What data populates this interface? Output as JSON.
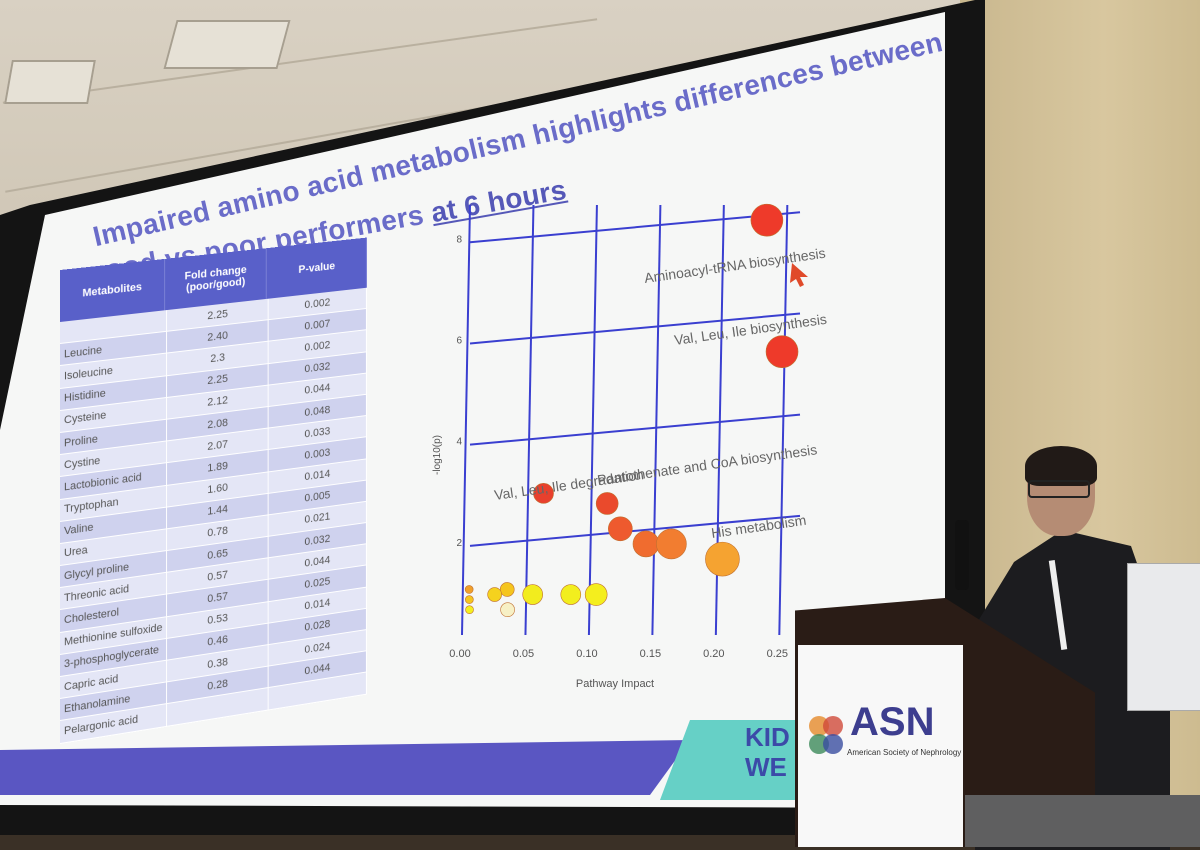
{
  "slide": {
    "title_line1": "Impaired amino acid metabolism highlights differences between",
    "title_line2_prefix": "good vs poor performers ",
    "title_line2_underlined": "at 6 hours"
  },
  "table": {
    "headers": [
      "Metabolites",
      "Fold change (poor/good)",
      "P-value"
    ],
    "rows": [
      [
        "",
        "2.25",
        "0.002"
      ],
      [
        "Leucine",
        "2.40",
        "0.007"
      ],
      [
        "Isoleucine",
        "2.3",
        "0.002"
      ],
      [
        "Histidine",
        "2.25",
        "0.032"
      ],
      [
        "Cysteine",
        "2.12",
        "0.044"
      ],
      [
        "Proline",
        "2.08",
        "0.048"
      ],
      [
        "Cystine",
        "2.07",
        "0.033"
      ],
      [
        "Lactobionic acid",
        "1.89",
        "0.003"
      ],
      [
        "Tryptophan",
        "1.60",
        "0.014"
      ],
      [
        "Valine",
        "1.44",
        "0.005"
      ],
      [
        "Urea",
        "0.78",
        "0.021"
      ],
      [
        "Glycyl proline",
        "0.65",
        "0.032"
      ],
      [
        "Threonic acid",
        "0.57",
        "0.044"
      ],
      [
        "Cholesterol",
        "0.57",
        "0.025"
      ],
      [
        "Methionine sulfoxide",
        "0.53",
        "0.014"
      ],
      [
        "3-phosphoglycerate",
        "0.46",
        "0.028"
      ],
      [
        "Capric acid",
        "0.38",
        "0.024"
      ],
      [
        "Ethanolamine",
        "0.28",
        "0.044"
      ],
      [
        "Pelargonic acid",
        "",
        ""
      ]
    ]
  },
  "chart_data": {
    "type": "scatter",
    "title": "",
    "xlabel": "Pathway Impact",
    "ylabel": "-log10(p)",
    "xlim": [
      0,
      0.26
    ],
    "ylim": [
      0,
      8.5
    ],
    "x_ticks": [
      "0.00",
      "0.05",
      "0.10",
      "0.15",
      "0.20",
      "0.25"
    ],
    "y_ticks": [
      "2",
      "4",
      "6",
      "8"
    ],
    "points": [
      {
        "x": 0.24,
        "y": 8.2,
        "r": 16,
        "color": "#ee3a2a"
      },
      {
        "x": 0.25,
        "y": 5.6,
        "r": 16,
        "color": "#ee3a2a"
      },
      {
        "x": 0.06,
        "y": 2.8,
        "r": 10,
        "color": "#e8402d"
      },
      {
        "x": 0.11,
        "y": 2.6,
        "r": 11,
        "color": "#ea4a2c"
      },
      {
        "x": 0.12,
        "y": 2.1,
        "r": 12,
        "color": "#ee5a2e"
      },
      {
        "x": 0.14,
        "y": 1.8,
        "r": 13,
        "color": "#f06c2f"
      },
      {
        "x": 0.16,
        "y": 1.8,
        "r": 15,
        "color": "#f27d30"
      },
      {
        "x": 0.2,
        "y": 1.5,
        "r": 17,
        "color": "#f5a331"
      },
      {
        "x": 0.1,
        "y": 0.8,
        "r": 11,
        "color": "#f4ee1e"
      },
      {
        "x": 0.08,
        "y": 0.8,
        "r": 10,
        "color": "#f2ee1e"
      },
      {
        "x": 0.05,
        "y": 0.8,
        "r": 10,
        "color": "#f2ec1e"
      },
      {
        "x": 0.03,
        "y": 0.5,
        "r": 7,
        "color": "#f7f0c5"
      },
      {
        "x": 0.03,
        "y": 0.9,
        "r": 7,
        "color": "#f5c51e"
      },
      {
        "x": 0.02,
        "y": 0.8,
        "r": 7,
        "color": "#f5d21e"
      },
      {
        "x": 0.0,
        "y": 0.9,
        "r": 4,
        "color": "#f0a02a"
      },
      {
        "x": 0.0,
        "y": 0.7,
        "r": 4,
        "color": "#f5c51e"
      },
      {
        "x": 0.0,
        "y": 0.5,
        "r": 4,
        "color": "#f4ee1e"
      }
    ],
    "annotations": [
      {
        "text": "Aminoacyl-tRNA biosynthesis"
      },
      {
        "text": "Val, Leu, Ile biosynthesis"
      },
      {
        "text": "Val, Leu, Ile degradation"
      },
      {
        "text": "Pantothenate and CoA biosynthesis"
      },
      {
        "text": "His metabolism"
      }
    ]
  },
  "banner": {
    "kid_line1": "KID",
    "kid_line2": "WE"
  },
  "sign": {
    "asn": "ASN",
    "subtitle": "American Society of Nephrology"
  },
  "colors": {
    "title": "#6a6cc9",
    "table_header": "#5960c9",
    "banner": "#5a56c2",
    "banner_teal": "#66d0c6"
  }
}
